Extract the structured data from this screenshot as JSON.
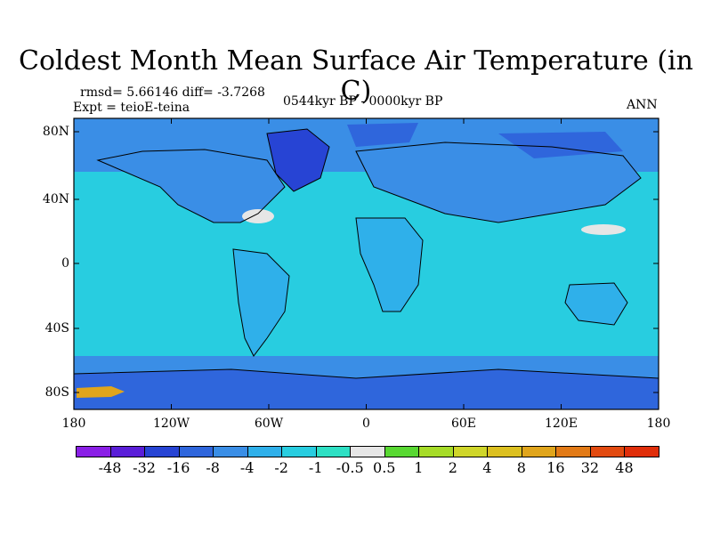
{
  "title": "Coldest Month Mean Surface Air Temperature (in C)",
  "stats": "rmsd= 5.66146 diff= -3.7268",
  "experiment": "Expt = teioE-teina",
  "period": "0544kyr BP - 0000kyr BP",
  "season": "ANN",
  "lat_ticks": [
    "80N",
    "40N",
    "0",
    "40S",
    "80S"
  ],
  "lon_ticks": [
    "180",
    "120W",
    "60W",
    "0",
    "60E",
    "120E",
    "180"
  ],
  "colorbar": {
    "labels": [
      "-48",
      "-32",
      "-16",
      "-8",
      "-4",
      "-2",
      "-1",
      "-0.5",
      "0.5",
      "1",
      "2",
      "4",
      "8",
      "16",
      "32",
      "48"
    ],
    "colors": [
      "#8a1fe6",
      "#5a1ed8",
      "#2744d4",
      "#2f66dc",
      "#3a8ee6",
      "#2fb0ea",
      "#28cde0",
      "#2ee0c4",
      "#e6e6e6",
      "#58d832",
      "#a6dc28",
      "#cfd62a",
      "#dcc020",
      "#e0a51c",
      "#e27a16",
      "#e24a10",
      "#e02e0a"
    ]
  },
  "map_colors": {
    "ocean": "#28cde0",
    "land_mid": "#2fb0ea",
    "high_lat": "#3a8ee6",
    "cold": "#2f66dc",
    "very_cold": "#2744d4",
    "warm_anomaly": "#e6e6e6",
    "hot": "#e0a51c"
  }
}
